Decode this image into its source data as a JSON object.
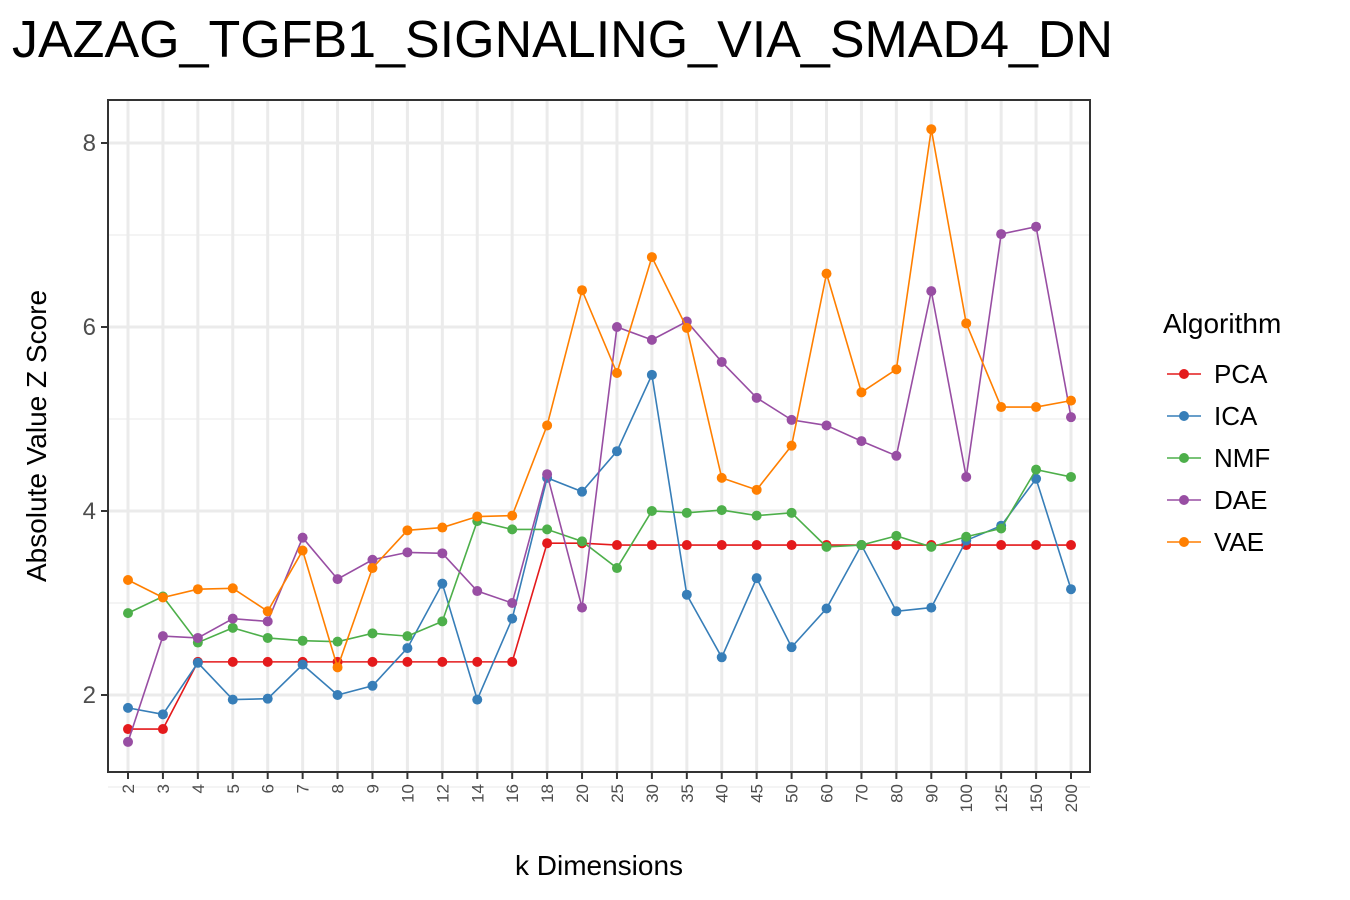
{
  "chart_data": {
    "type": "line",
    "title": "JAZAG_TGFB1_SIGNALING_VIA_SMAD4_DN",
    "xlabel": "k Dimensions",
    "ylabel": "Absolute Value Z Score",
    "ylim": [
      1.2,
      8.5
    ],
    "yticks": [
      2,
      4,
      6,
      8
    ],
    "grid": true,
    "legend_title": "Algorithm",
    "legend_position": "right",
    "categories": [
      "2",
      "3",
      "4",
      "5",
      "6",
      "7",
      "8",
      "9",
      "10",
      "12",
      "14",
      "16",
      "18",
      "20",
      "25",
      "30",
      "35",
      "40",
      "45",
      "50",
      "60",
      "70",
      "80",
      "90",
      "100",
      "125",
      "150",
      "200"
    ],
    "series": [
      {
        "name": "PCA",
        "color": "#e41a1c",
        "values": [
          1.63,
          1.63,
          2.36,
          2.36,
          2.36,
          2.36,
          2.36,
          2.36,
          2.36,
          2.36,
          2.36,
          2.36,
          3.65,
          3.65,
          3.63,
          3.63,
          3.63,
          3.63,
          3.63,
          3.63,
          3.63,
          3.63,
          3.63,
          3.63,
          3.63,
          3.63,
          3.63,
          3.63
        ]
      },
      {
        "name": "ICA",
        "color": "#377eb8",
        "values": [
          1.86,
          1.79,
          2.35,
          1.95,
          1.96,
          2.33,
          2.0,
          2.1,
          2.51,
          3.21,
          1.95,
          2.83,
          4.36,
          4.21,
          4.65,
          5.48,
          3.09,
          2.41,
          3.27,
          2.52,
          2.94,
          3.63,
          2.91,
          2.95,
          3.68,
          3.84,
          4.35,
          3.15
        ]
      },
      {
        "name": "NMF",
        "color": "#4daf4a",
        "values": [
          2.89,
          3.07,
          2.57,
          2.73,
          2.62,
          2.59,
          2.58,
          2.67,
          2.64,
          2.8,
          3.89,
          3.8,
          3.8,
          3.67,
          3.38,
          4.0,
          3.98,
          4.01,
          3.95,
          3.98,
          3.61,
          3.63,
          3.73,
          3.61,
          3.72,
          3.81,
          4.45,
          4.37
        ]
      },
      {
        "name": "DAE",
        "color": "#984ea3",
        "values": [
          1.49,
          2.64,
          2.62,
          2.83,
          2.8,
          3.71,
          3.26,
          3.47,
          3.55,
          3.54,
          3.13,
          3.0,
          4.4,
          2.95,
          6.0,
          5.86,
          6.06,
          5.62,
          5.23,
          4.99,
          4.93,
          4.76,
          4.6,
          6.39,
          4.37,
          7.01,
          7.09,
          5.02
        ]
      },
      {
        "name": "VAE",
        "color": "#ff7f00",
        "values": [
          3.25,
          3.06,
          3.15,
          3.16,
          2.91,
          3.57,
          2.3,
          3.38,
          3.79,
          3.82,
          3.94,
          3.95,
          4.93,
          6.4,
          5.5,
          6.76,
          5.99,
          4.36,
          4.23,
          4.71,
          6.58,
          5.29,
          5.54,
          8.15,
          6.04,
          5.13,
          5.13,
          5.2
        ]
      }
    ]
  }
}
